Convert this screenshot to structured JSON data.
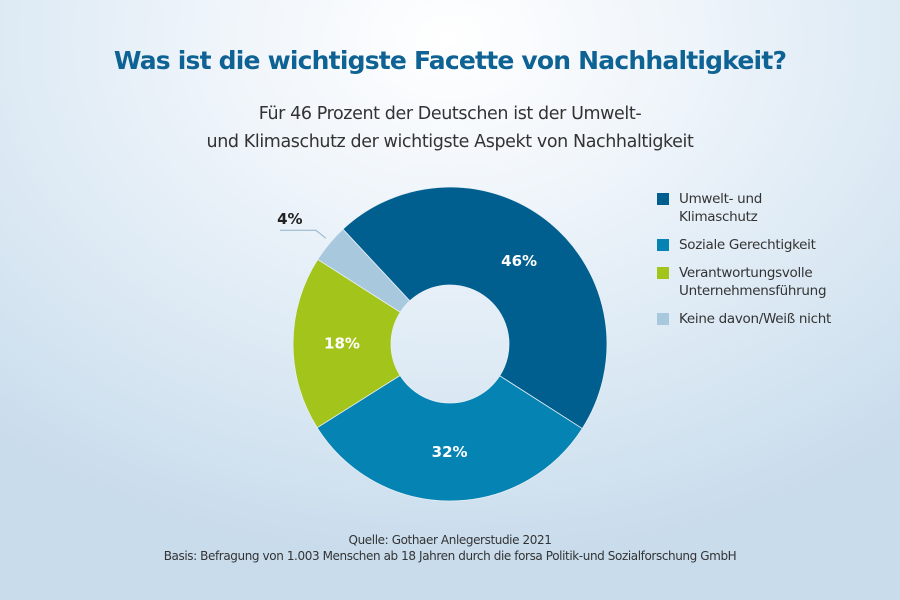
{
  "chart_data": {
    "type": "pie",
    "variant": "donut",
    "title": "Was ist die wichtigste Facette von Nachhaltigkeit?",
    "subtitle": [
      "Für 46 Prozent der Deutschen ist der Umwelt-",
      "und Klimaschutz der wichtigste Aspekt von Nachhaltigkeit"
    ],
    "unit": "%",
    "legend_position": "right",
    "slices": [
      {
        "name": "Umwelt- und Klimaschutz",
        "legend_lines": [
          "Umwelt- und",
          "Klimaschutz"
        ],
        "value": 46,
        "label": "46%",
        "color": "#005f8e",
        "label_color": "#ffffff"
      },
      {
        "name": "Soziale Gerechtigkeit",
        "legend_lines": [
          "Soziale Gerechtigkeit"
        ],
        "value": 32,
        "label": "32%",
        "color": "#0583b2",
        "label_color": "#ffffff"
      },
      {
        "name": "Verantwortungsvolle Unternehmensführung",
        "legend_lines": [
          "Verantwortungsvolle",
          "Unternehmensführung"
        ],
        "value": 18,
        "label": "18%",
        "color": "#a3c41a",
        "label_color": "#ffffff"
      },
      {
        "name": "Keine davon/Weiß nicht",
        "legend_lines": [
          "Keine davon/Weiß nicht"
        ],
        "value": 4,
        "label": "4%",
        "color": "#a8c8de",
        "label_color": "#222222",
        "label_outside": true
      }
    ]
  },
  "footer": {
    "source": "Quelle: Gothaer Anlegerstudie 2021",
    "basis": "Basis: Befragung von 1.003 Menschen ab 18 Jahren durch die forsa Politik-und Sozialforschung GmbH"
  }
}
